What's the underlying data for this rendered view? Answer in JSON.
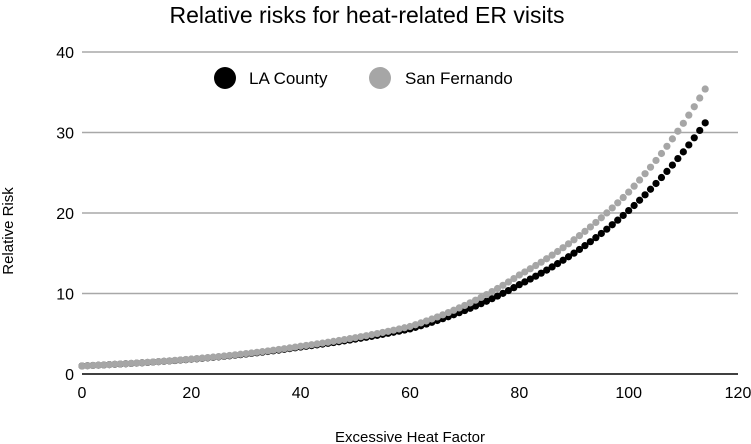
{
  "chart_data": {
    "type": "scatter",
    "title": "Relative risks for heat-related ER visits",
    "xlabel": "Excessive Heat Factor",
    "ylabel": "Relative Risk",
    "xlim": [
      0,
      120
    ],
    "ylim": [
      0,
      40
    ],
    "x_ticks": [
      0,
      20,
      40,
      60,
      80,
      100,
      120
    ],
    "y_ticks": [
      0,
      10,
      20,
      30,
      40
    ],
    "grid": "horizontal",
    "legend_position": "top-left",
    "x_range": {
      "start": 0,
      "end": 114,
      "step": 1
    },
    "series": [
      {
        "name": "LA County",
        "color": "#000000",
        "anchors": [
          [
            0,
            1.0
          ],
          [
            40,
            3.35
          ],
          [
            60,
            5.6
          ],
          [
            80,
            11.1
          ],
          [
            100,
            20.3
          ],
          [
            114,
            31.2
          ]
        ]
      },
      {
        "name": "San Fernando",
        "color": "#a6a6a6",
        "anchors": [
          [
            0,
            1.0
          ],
          [
            40,
            3.45
          ],
          [
            60,
            5.9
          ],
          [
            80,
            12.3
          ],
          [
            100,
            22.6
          ],
          [
            114,
            35.4
          ]
        ]
      }
    ]
  }
}
